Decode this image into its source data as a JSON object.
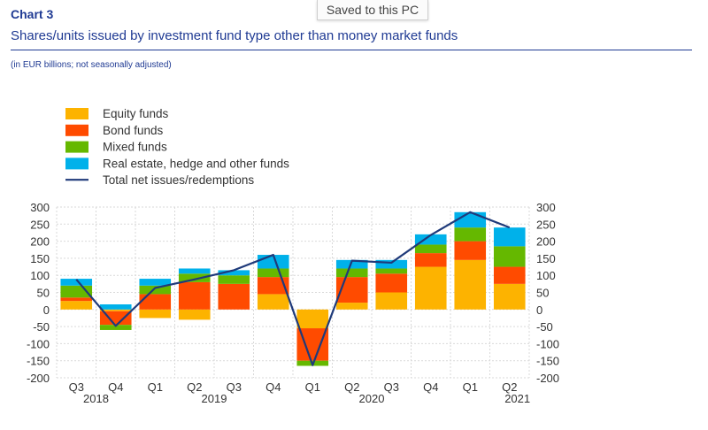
{
  "header": {
    "chart_number": "Chart 3",
    "title": "Shares/units issued by investment fund type other than money market funds",
    "units": "(in EUR billions; not seasonally adjusted)"
  },
  "toast": {
    "text": "Saved to this PC"
  },
  "colors": {
    "equity": "#fdb300",
    "bond": "#ff4b00",
    "mixed": "#65b800",
    "real_estate": "#00b1ea",
    "total": "#1f3a7a",
    "grid": "#d9d9d9",
    "text": "#333333"
  },
  "chart_data": {
    "type": "bar",
    "stacked": true,
    "categories": [
      "Q3",
      "Q4",
      "Q1",
      "Q2",
      "Q3",
      "Q4",
      "Q1",
      "Q2",
      "Q3",
      "Q4",
      "Q1",
      "Q2"
    ],
    "year_labels": [
      {
        "label": "2018",
        "index": 0.5
      },
      {
        "label": "2019",
        "index": 3.5
      },
      {
        "label": "2020",
        "index": 7.5
      },
      {
        "label": "2021",
        "index": 11.2
      }
    ],
    "series": [
      {
        "name": "Equity funds",
        "color_key": "equity",
        "values": [
          25,
          -5,
          -25,
          -30,
          0,
          45,
          -55,
          20,
          50,
          125,
          145,
          75
        ]
      },
      {
        "name": "Bond funds",
        "color_key": "bond",
        "values": [
          10,
          -40,
          45,
          80,
          75,
          50,
          -95,
          75,
          55,
          40,
          55,
          50
        ]
      },
      {
        "name": "Mixed funds",
        "color_key": "mixed",
        "values": [
          35,
          -15,
          25,
          25,
          25,
          25,
          -15,
          25,
          15,
          25,
          40,
          60
        ]
      },
      {
        "name": "Real estate, hedge and other funds",
        "color_key": "real_estate",
        "values": [
          20,
          15,
          20,
          15,
          15,
          40,
          0,
          25,
          25,
          30,
          45,
          55
        ]
      }
    ],
    "line": {
      "name": "Total net issues/redemptions",
      "color_key": "total",
      "values": [
        88,
        -48,
        63,
        88,
        115,
        160,
        -163,
        143,
        137,
        218,
        285,
        240
      ]
    },
    "ylim": [
      -200,
      300
    ],
    "yticks": [
      300,
      250,
      200,
      150,
      100,
      50,
      0,
      -50,
      -100,
      -150,
      -200
    ],
    "grid": true,
    "legend_position": "top-left"
  }
}
